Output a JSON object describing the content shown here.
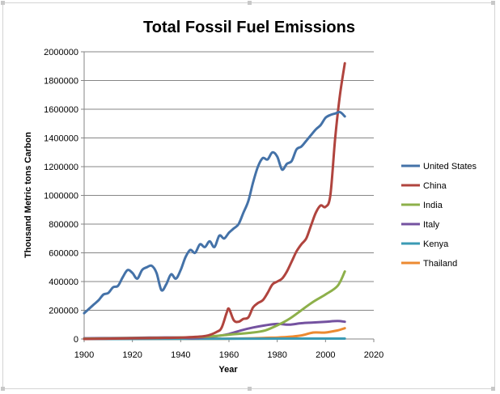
{
  "chart_data": {
    "type": "line",
    "title": "Total Fossil Fuel Emissions",
    "xlabel": "Year",
    "ylabel": "Thousand  Metric tons Carbon",
    "xlim": [
      1900,
      2020
    ],
    "ylim": [
      0,
      2000000
    ],
    "xticks": [
      1900,
      1920,
      1940,
      1960,
      1980,
      2000,
      2020
    ],
    "yticks": [
      0,
      200000,
      400000,
      600000,
      800000,
      1000000,
      1200000,
      1400000,
      1600000,
      1800000,
      2000000
    ],
    "grid": "horizontal",
    "legend_position": "right",
    "series": [
      {
        "name": "United States",
        "color": "#4472a8",
        "x": [
          1900,
          1902,
          1904,
          1906,
          1908,
          1910,
          1912,
          1914,
          1916,
          1918,
          1920,
          1922,
          1924,
          1926,
          1928,
          1930,
          1932,
          1934,
          1936,
          1938,
          1940,
          1942,
          1944,
          1946,
          1948,
          1950,
          1952,
          1954,
          1956,
          1958,
          1960,
          1962,
          1964,
          1966,
          1968,
          1970,
          1972,
          1974,
          1976,
          1978,
          1980,
          1982,
          1984,
          1986,
          1988,
          1990,
          1992,
          1994,
          1996,
          1998,
          2000,
          2002,
          2004,
          2006,
          2008
        ],
        "y": [
          180000,
          210000,
          240000,
          270000,
          310000,
          320000,
          360000,
          370000,
          430000,
          480000,
          460000,
          420000,
          480000,
          500000,
          510000,
          460000,
          340000,
          380000,
          450000,
          420000,
          480000,
          570000,
          620000,
          600000,
          660000,
          640000,
          680000,
          640000,
          720000,
          700000,
          740000,
          770000,
          800000,
          880000,
          960000,
          1090000,
          1200000,
          1260000,
          1250000,
          1300000,
          1270000,
          1180000,
          1220000,
          1240000,
          1320000,
          1340000,
          1380000,
          1420000,
          1460000,
          1490000,
          1540000,
          1560000,
          1570000,
          1580000,
          1550000
        ]
      },
      {
        "name": "China",
        "color": "#b0443e",
        "x": [
          1900,
          1910,
          1920,
          1930,
          1940,
          1950,
          1955,
          1957,
          1959,
          1960,
          1962,
          1964,
          1966,
          1968,
          1970,
          1972,
          1974,
          1976,
          1978,
          1980,
          1982,
          1984,
          1986,
          1988,
          1990,
          1992,
          1994,
          1996,
          1998,
          2000,
          2002,
          2004,
          2006,
          2008
        ],
        "y": [
          0,
          2000,
          5000,
          7000,
          10000,
          20000,
          50000,
          80000,
          180000,
          210000,
          130000,
          120000,
          140000,
          150000,
          220000,
          250000,
          270000,
          320000,
          380000,
          400000,
          420000,
          470000,
          540000,
          610000,
          660000,
          700000,
          790000,
          880000,
          930000,
          920000,
          1000000,
          1400000,
          1700000,
          1920000
        ]
      },
      {
        "name": "India",
        "color": "#8db04a",
        "x": [
          1900,
          1920,
          1940,
          1950,
          1960,
          1970,
          1975,
          1980,
          1985,
          1990,
          1995,
          2000,
          2005,
          2008
        ],
        "y": [
          2000,
          6000,
          10000,
          15000,
          30000,
          45000,
          60000,
          95000,
          140000,
          200000,
          260000,
          310000,
          370000,
          470000
        ]
      },
      {
        "name": "Italy",
        "color": "#7452a0",
        "x": [
          1900,
          1920,
          1930,
          1940,
          1945,
          1950,
          1955,
          1960,
          1965,
          1970,
          1975,
          1980,
          1985,
          1990,
          1995,
          2000,
          2005,
          2008
        ],
        "y": [
          5000,
          8000,
          10000,
          10000,
          5000,
          12000,
          20000,
          35000,
          60000,
          80000,
          95000,
          105000,
          100000,
          110000,
          115000,
          120000,
          125000,
          120000
        ]
      },
      {
        "name": "Kenya",
        "color": "#3a9ab4",
        "x": [
          1900,
          1950,
          2000,
          2008
        ],
        "y": [
          0,
          1000,
          3000,
          3000
        ]
      },
      {
        "name": "Thailand",
        "color": "#ec8a31",
        "x": [
          1900,
          1950,
          1960,
          1970,
          1975,
          1980,
          1985,
          1990,
          1995,
          2000,
          2005,
          2008
        ],
        "y": [
          0,
          1000,
          2000,
          5000,
          8000,
          10000,
          15000,
          25000,
          45000,
          45000,
          60000,
          75000
        ]
      }
    ]
  }
}
